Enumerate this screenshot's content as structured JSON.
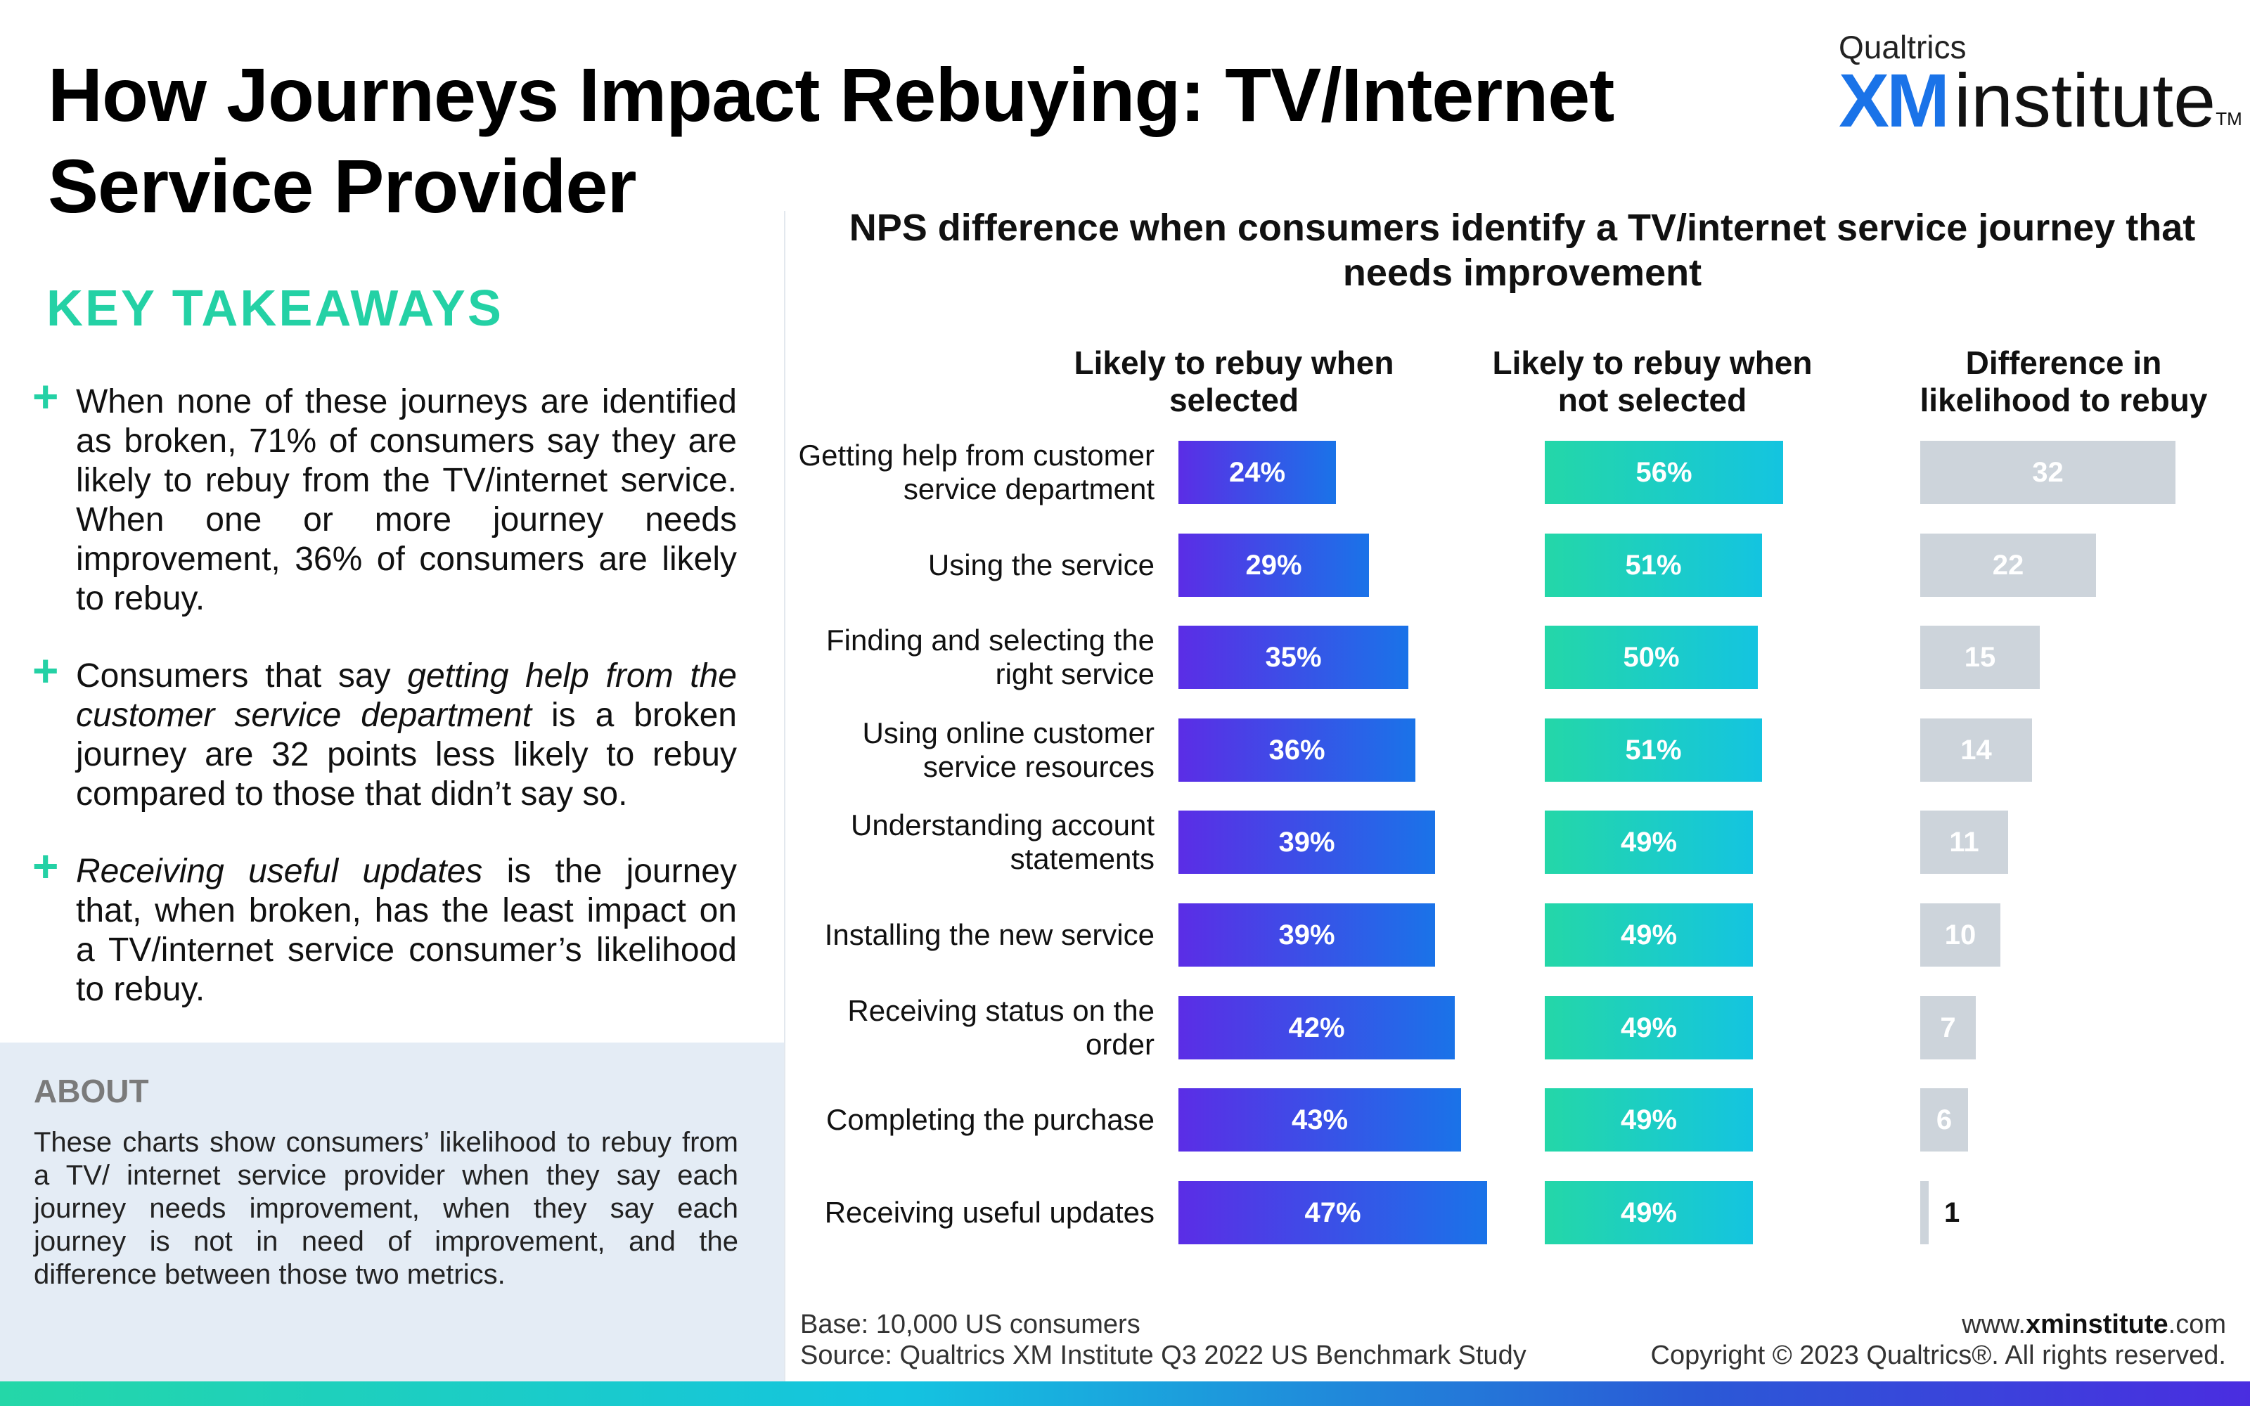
{
  "header": {
    "title": "How Journeys Impact Rebuying: TV/Internet Service Provider",
    "logo_top": "Qualtrics",
    "logo_xm": "XM",
    "logo_institute": "institute",
    "logo_tm": "TM"
  },
  "takeaways": {
    "heading": "KEY TAKEAWAYS",
    "items": [
      {
        "pre": "When none of these journeys are identified as broken, 71% of consumers say they are likely to rebuy from the TV/internet service. When one or more journey needs improvement, 36% of consumers are likely to rebuy.",
        "em": "",
        "post": ""
      },
      {
        "pre": "Consumers that say ",
        "em": "getting help from the customer service department",
        "post": " is a broken journey are 32 points less likely to rebuy compared to those that didn’t say so."
      },
      {
        "pre": "",
        "em": "Receiving useful updates",
        "post": " is the journey that, when broken, has the least impact on a TV/internet service consumer’s likelihood to rebuy."
      }
    ]
  },
  "about": {
    "heading": "ABOUT",
    "text": "These charts show consumers’ likelihood to rebuy from a TV/ internet service provider when they say each journey needs improvement, when they say each journey is not in need of improvement, and the difference between those two metrics."
  },
  "chart_data": {
    "type": "bar",
    "title": "NPS difference when consumers identify a TV/internet service journey that needs improvement",
    "categories": [
      "Getting help from customer service department",
      "Using the service",
      "Finding and selecting the right service",
      "Using online customer service resources",
      "Understanding account statements",
      "Installing the new service",
      "Receiving status on the order",
      "Completing the purchase",
      "Receiving useful updates"
    ],
    "series": [
      {
        "name": "Likely to rebuy when selected",
        "values": [
          24,
          29,
          35,
          36,
          39,
          39,
          42,
          43,
          47
        ],
        "unit": "%"
      },
      {
        "name": "Likely to rebuy when not selected",
        "values": [
          56,
          51,
          50,
          51,
          49,
          49,
          49,
          49,
          49
        ],
        "unit": "%"
      },
      {
        "name": "Difference in likelihood to rebuy",
        "values": [
          32,
          22,
          15,
          14,
          11,
          10,
          7,
          6,
          1
        ],
        "unit": ""
      }
    ],
    "colors": {
      "selected": "#5b2de6",
      "not_selected": "#24d7a8",
      "difference": "#cdd4db"
    },
    "legend": "none"
  },
  "footer": {
    "base": "Base: 10,000 US consumers",
    "source": "Source: Qualtrics XM Institute Q3 2022 US Benchmark Study",
    "url_pre": "www.",
    "url_bold": "xminstitute",
    "url_post": ".com",
    "copyright": "Copyright © 2023 Qualtrics®. All rights reserved."
  }
}
